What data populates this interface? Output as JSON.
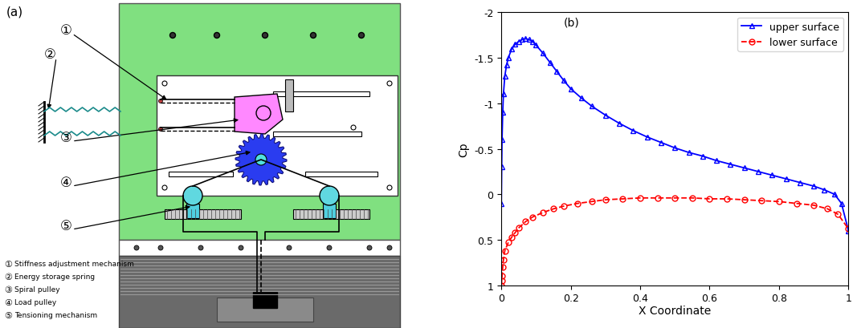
{
  "diagram": {
    "panel_label": "(a)",
    "callouts": [
      "①",
      "②",
      "③",
      "④",
      "⑤"
    ],
    "legend": [
      {
        "number": "①",
        "text": "Stiffness adjustment mechanism"
      },
      {
        "number": "②",
        "text": "Energy storage spring"
      },
      {
        "number": "③",
        "text": "Spiral pulley"
      },
      {
        "number": "④",
        "text": "Load pulley"
      },
      {
        "number": "⑤",
        "text": "Tensioning mechanism"
      }
    ]
  },
  "chart_data": {
    "type": "line",
    "title": "(b)",
    "x_label": "X Coordinate",
    "y_label": "Cp",
    "xlim": [
      0,
      1
    ],
    "xticks": [
      0,
      0.2,
      0.4,
      0.6,
      0.8,
      1
    ],
    "ylim": [
      1,
      -2
    ],
    "yticks": [
      -2,
      -1.5,
      -1,
      -0.5,
      0,
      0.5,
      1
    ],
    "grid": false,
    "legend": "upper right",
    "series": [
      {
        "name": "upper surface",
        "color": "#0000ff",
        "marker": "triangle",
        "line_style": "solid",
        "x": [
          0,
          0.001,
          0.002,
          0.004,
          0.006,
          0.01,
          0.015,
          0.02,
          0.03,
          0.04,
          0.05,
          0.06,
          0.07,
          0.08,
          0.09,
          0.1,
          0.12,
          0.14,
          0.16,
          0.18,
          0.2,
          0.23,
          0.26,
          0.3,
          0.34,
          0.38,
          0.42,
          0.46,
          0.5,
          0.54,
          0.58,
          0.62,
          0.66,
          0.7,
          0.74,
          0.78,
          0.82,
          0.86,
          0.9,
          0.93,
          0.96,
          0.98,
          1.0
        ],
        "values": [
          0.1,
          -0.3,
          -0.6,
          -0.9,
          -1.1,
          -1.3,
          -1.42,
          -1.5,
          -1.6,
          -1.65,
          -1.68,
          -1.7,
          -1.71,
          -1.7,
          -1.68,
          -1.64,
          -1.55,
          -1.45,
          -1.35,
          -1.25,
          -1.16,
          -1.06,
          -0.97,
          -0.87,
          -0.78,
          -0.7,
          -0.63,
          -0.57,
          -0.51,
          -0.46,
          -0.42,
          -0.37,
          -0.33,
          -0.29,
          -0.25,
          -0.21,
          -0.17,
          -0.13,
          -0.09,
          -0.05,
          0.0,
          0.1,
          0.4
        ]
      },
      {
        "name": "lower surface",
        "color": "#ff0000",
        "marker": "circle",
        "line_style": "dashed",
        "x": [
          0,
          0.001,
          0.002,
          0.004,
          0.006,
          0.01,
          0.02,
          0.03,
          0.04,
          0.05,
          0.07,
          0.09,
          0.12,
          0.15,
          0.18,
          0.22,
          0.26,
          0.3,
          0.35,
          0.4,
          0.45,
          0.5,
          0.55,
          0.6,
          0.65,
          0.7,
          0.75,
          0.8,
          0.85,
          0.9,
          0.94,
          0.97,
          1.0
        ],
        "values": [
          1.0,
          0.95,
          0.9,
          0.8,
          0.72,
          0.62,
          0.53,
          0.47,
          0.42,
          0.37,
          0.3,
          0.25,
          0.2,
          0.16,
          0.13,
          0.1,
          0.08,
          0.06,
          0.05,
          0.04,
          0.04,
          0.04,
          0.04,
          0.05,
          0.05,
          0.06,
          0.07,
          0.08,
          0.1,
          0.12,
          0.16,
          0.22,
          0.38
        ]
      }
    ]
  }
}
